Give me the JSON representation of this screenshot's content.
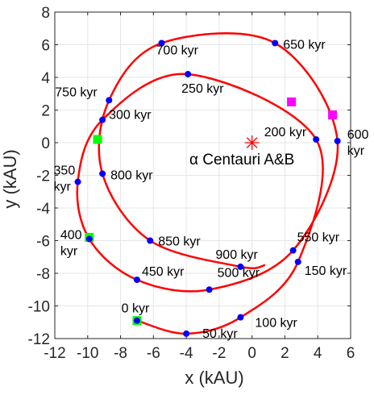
{
  "chart_data": {
    "type": "line",
    "xlabel": "x (kAU)",
    "ylabel": "y (kAU)",
    "xlim": [
      -12,
      6
    ],
    "ylim": [
      -12,
      8
    ],
    "xticks": [
      -12,
      -10,
      -8,
      -6,
      -4,
      -2,
      0,
      2,
      4,
      6
    ],
    "yticks": [
      -12,
      -10,
      -8,
      -6,
      -4,
      -2,
      0,
      2,
      4,
      6,
      8
    ],
    "xtick_labels": [
      "-12",
      "-10",
      "-8",
      "-6",
      "-4",
      "-2",
      "0",
      "2",
      "4",
      "6"
    ],
    "ytick_labels": [
      "-12",
      "-10",
      "-8",
      "-6",
      "-4",
      "-2",
      "0",
      "2",
      "4",
      "6",
      "8"
    ],
    "grid": true,
    "colors": {
      "orbit": "#ff0000",
      "points": "#0000ff",
      "green_marker": "#00ff00",
      "magenta_marker": "#ff00ff",
      "star": "#ff0000",
      "axis": "#262626",
      "grid": "#e6e6e6"
    },
    "central_object": {
      "label": "α Centauri A&B",
      "x": 0,
      "y": 0
    },
    "series": [
      {
        "points": [
          {
            "x": -7.0,
            "y": -10.9,
            "label": "0 kyr"
          },
          {
            "x": -4.0,
            "y": -11.7,
            "label": "50 kyr"
          },
          {
            "x": -0.7,
            "y": -10.7,
            "label": "100 kyr"
          },
          {
            "x": 2.8,
            "y": -7.3,
            "label": "150 kyr"
          },
          {
            "x": 3.9,
            "y": 0.2,
            "label": "200 kyr"
          },
          {
            "x": -3.9,
            "y": 4.2,
            "label": "250 kyr"
          },
          {
            "x": -9.1,
            "y": 1.4,
            "label": "300 kyr"
          },
          {
            "x": -10.6,
            "y": -2.4,
            "label": "350\nkyr"
          },
          {
            "x": -9.9,
            "y": -5.9,
            "label": "400\nkyr"
          },
          {
            "x": -7.0,
            "y": -8.4,
            "label": "450 kyr"
          },
          {
            "x": -2.6,
            "y": -9.0,
            "label": "500 kyr"
          },
          {
            "x": 2.5,
            "y": -6.6,
            "label": "550 kyr"
          },
          {
            "x": 5.2,
            "y": 0.1,
            "label": "600\nkyr"
          },
          {
            "x": 1.4,
            "y": 6.1,
            "label": "650 kyr"
          },
          {
            "x": -5.5,
            "y": 6.1,
            "label": "700 kyr"
          },
          {
            "x": -8.7,
            "y": 2.6,
            "label": "750 kyr"
          },
          {
            "x": -9.1,
            "y": -1.9,
            "label": "800 kyr"
          },
          {
            "x": -6.2,
            "y": -6.0,
            "label": "850 kyr"
          },
          {
            "x": -0.7,
            "y": -7.6,
            "label": "900 kyr"
          }
        ],
        "end": {
          "x": 0.8,
          "y": -7.5
        }
      }
    ],
    "green_markers": [
      {
        "x": -7.0,
        "y": -10.9
      },
      {
        "x": -9.9,
        "y": -5.8
      },
      {
        "x": -9.4,
        "y": 0.2
      }
    ],
    "magenta_markers": [
      {
        "x": 2.4,
        "y": 2.5
      },
      {
        "x": 4.9,
        "y": 1.7
      }
    ]
  }
}
